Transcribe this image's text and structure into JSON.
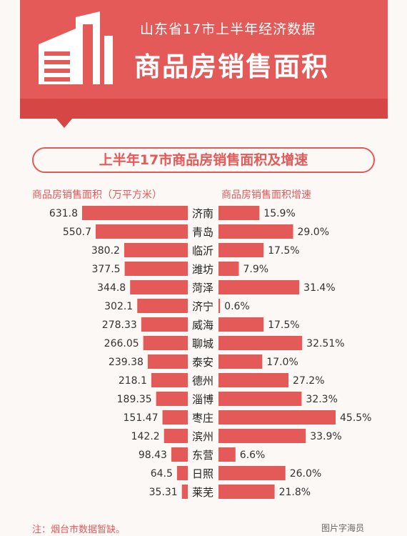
{
  "header": {
    "supertitle": "山东省17市上半年经济数据",
    "title": "商品房销售面积"
  },
  "subtitle": "上半年17市商品房销售面积及增速",
  "left_header": "商品房销售面积（万平方米）",
  "right_header": "商品房销售面积增速",
  "footnote": "注：烟台市数据暂缺。",
  "watermark": "图片字海员",
  "colors": {
    "bar": "#e35a59",
    "header": "#e35a59",
    "text": "#e35a59"
  },
  "chart_data": {
    "type": "bar",
    "categories": [
      "济南",
      "青岛",
      "临沂",
      "潍坊",
      "菏泽",
      "济宁",
      "威海",
      "聊城",
      "泰安",
      "德州",
      "淄博",
      "枣庄",
      "滨州",
      "东营",
      "日照",
      "莱芜"
    ],
    "series": [
      {
        "name": "商品房销售面积（万平方米）",
        "values": [
          631.8,
          550.7,
          380.2,
          377.5,
          344.8,
          302.1,
          278.33,
          266.05,
          239.38,
          218.1,
          189.35,
          151.47,
          142.2,
          98.43,
          64.5,
          35.31
        ],
        "labels": [
          "631.8",
          "550.7",
          "380.2",
          "377.5",
          "344.8",
          "302.1",
          "278.33",
          "266.05",
          "239.38",
          "218.1",
          "189.35",
          "151.47",
          "142.2",
          "98.43",
          "64.5",
          "35.31"
        ]
      },
      {
        "name": "商品房销售面积增速",
        "values": [
          15.9,
          29.0,
          17.5,
          7.9,
          31.4,
          0.6,
          17.5,
          32.51,
          17.0,
          27.2,
          32.3,
          45.5,
          33.9,
          6.6,
          26.0,
          21.8
        ],
        "labels": [
          "15.9%",
          "29.0%",
          "17.5%",
          "7.9%",
          "31.4%",
          "0.6%",
          "17.5%",
          "32.51%",
          "17.0%",
          "27.2%",
          "32.3%",
          "45.5%",
          "33.9%",
          "6.6%",
          "26.0%",
          "21.8%"
        ]
      }
    ]
  }
}
